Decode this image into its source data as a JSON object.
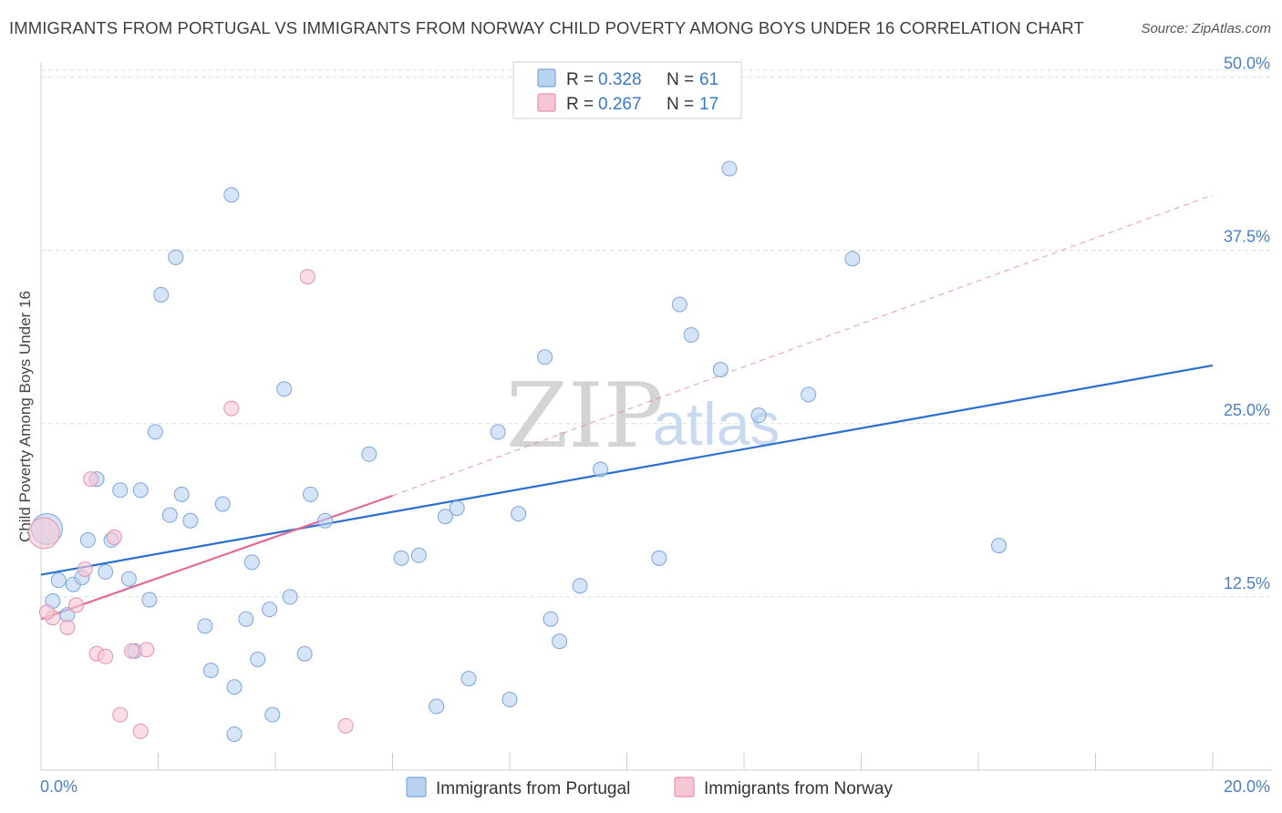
{
  "title": "IMMIGRANTS FROM PORTUGAL VS IMMIGRANTS FROM NORWAY CHILD POVERTY AMONG BOYS UNDER 16 CORRELATION CHART",
  "source": "Source: ZipAtlas.com",
  "watermark": {
    "zip": "ZIP",
    "atlas": "atlas"
  },
  "legend": {
    "rows": [
      {
        "r_label": "R =",
        "r_value": "0.328",
        "n_label": "N =",
        "n_value": "61"
      },
      {
        "r_label": "R =",
        "r_value": "0.267",
        "n_label": "N =",
        "n_value": "17"
      }
    ]
  },
  "bottom_legend": [
    "Immigrants from Portugal",
    "Immigrants from Norway"
  ],
  "colors": {
    "portugal_fill": "#b9d2f0",
    "portugal_stroke": "#7aa6dc",
    "portugal_line": "#2a6fd0",
    "norway_fill": "#f7c6d4",
    "norway_stroke": "#e890ad",
    "norway_line": "#e26a95",
    "axis_label": "#4a7fc4",
    "grid": "#dcdcdc"
  },
  "chart_data": {
    "type": "scatter",
    "title": "IMMIGRANTS FROM PORTUGAL VS IMMIGRANTS FROM NORWAY CHILD POVERTY AMONG BOYS UNDER 16 CORRELATION CHART",
    "xlabel": "",
    "ylabel": "Child Poverty Among Boys Under 16",
    "xlim": [
      0,
      20
    ],
    "ylim": [
      0,
      50.5
    ],
    "x_tick_labels": [
      "0.0%",
      "20.0%"
    ],
    "y_ticks": [
      12.5,
      25.0,
      37.5,
      50.0
    ],
    "y_tick_labels": [
      "12.5%",
      "25.0%",
      "37.5%",
      "50.0%"
    ],
    "grid": true,
    "legend_position": "top-center",
    "series": [
      {
        "name": "Immigrants from Portugal",
        "r": 0.328,
        "n": 61,
        "trend": {
          "x": [
            0,
            20
          ],
          "y": [
            14.1,
            29.2
          ],
          "style": "solid"
        },
        "points": [
          {
            "x": 0.1,
            "y": 17.4,
            "big": true
          },
          {
            "x": 0.2,
            "y": 12.2
          },
          {
            "x": 0.3,
            "y": 13.7
          },
          {
            "x": 0.45,
            "y": 11.2
          },
          {
            "x": 0.55,
            "y": 13.4
          },
          {
            "x": 0.7,
            "y": 13.9
          },
          {
            "x": 0.8,
            "y": 16.6
          },
          {
            "x": 0.95,
            "y": 21.0
          },
          {
            "x": 1.1,
            "y": 14.3
          },
          {
            "x": 1.2,
            "y": 16.6
          },
          {
            "x": 1.35,
            "y": 20.2
          },
          {
            "x": 1.5,
            "y": 13.8
          },
          {
            "x": 1.6,
            "y": 8.6
          },
          {
            "x": 1.7,
            "y": 20.2
          },
          {
            "x": 1.85,
            "y": 12.3
          },
          {
            "x": 1.95,
            "y": 24.4
          },
          {
            "x": 2.05,
            "y": 34.3
          },
          {
            "x": 2.2,
            "y": 18.4
          },
          {
            "x": 2.3,
            "y": 37.0
          },
          {
            "x": 2.4,
            "y": 19.9
          },
          {
            "x": 2.55,
            "y": 18.0
          },
          {
            "x": 2.8,
            "y": 10.4
          },
          {
            "x": 2.9,
            "y": 7.2
          },
          {
            "x": 3.1,
            "y": 19.2
          },
          {
            "x": 3.25,
            "y": 41.5
          },
          {
            "x": 3.3,
            "y": 6.0
          },
          {
            "x": 3.5,
            "y": 10.9
          },
          {
            "x": 3.6,
            "y": 15.0
          },
          {
            "x": 3.7,
            "y": 8.0
          },
          {
            "x": 3.9,
            "y": 11.6
          },
          {
            "x": 3.95,
            "y": 4.0
          },
          {
            "x": 4.15,
            "y": 27.5
          },
          {
            "x": 4.25,
            "y": 12.5
          },
          {
            "x": 4.5,
            "y": 8.4
          },
          {
            "x": 4.6,
            "y": 19.9
          },
          {
            "x": 4.85,
            "y": 18.0
          },
          {
            "x": 5.6,
            "y": 22.8
          },
          {
            "x": 6.15,
            "y": 15.3
          },
          {
            "x": 6.45,
            "y": 15.5
          },
          {
            "x": 6.75,
            "y": 4.6
          },
          {
            "x": 6.9,
            "y": 18.3
          },
          {
            "x": 7.1,
            "y": 18.9
          },
          {
            "x": 7.3,
            "y": 6.6
          },
          {
            "x": 7.8,
            "y": 24.4
          },
          {
            "x": 8.0,
            "y": 5.1
          },
          {
            "x": 8.15,
            "y": 18.5
          },
          {
            "x": 8.6,
            "y": 29.8
          },
          {
            "x": 8.7,
            "y": 10.9
          },
          {
            "x": 8.85,
            "y": 9.3
          },
          {
            "x": 9.2,
            "y": 13.3
          },
          {
            "x": 9.55,
            "y": 21.7
          },
          {
            "x": 10.55,
            "y": 15.3
          },
          {
            "x": 10.9,
            "y": 33.6
          },
          {
            "x": 11.1,
            "y": 31.4
          },
          {
            "x": 11.6,
            "y": 28.9
          },
          {
            "x": 11.75,
            "y": 43.4
          },
          {
            "x": 12.25,
            "y": 25.6
          },
          {
            "x": 13.1,
            "y": 27.1
          },
          {
            "x": 13.85,
            "y": 36.9
          },
          {
            "x": 16.35,
            "y": 16.2
          },
          {
            "x": 3.3,
            "y": 2.6
          }
        ]
      },
      {
        "name": "Immigrants from Norway",
        "r": 0.267,
        "n": 17,
        "trend": {
          "x": [
            0,
            6
          ],
          "y": [
            10.9,
            19.8
          ],
          "style": "solid",
          "extended_to": {
            "x": 20,
            "y": 41.5,
            "style": "dashed"
          }
        },
        "points": [
          {
            "x": 0.05,
            "y": 17.1,
            "big": true
          },
          {
            "x": 0.2,
            "y": 11.0
          },
          {
            "x": 0.45,
            "y": 10.3
          },
          {
            "x": 0.6,
            "y": 11.9
          },
          {
            "x": 0.75,
            "y": 14.5
          },
          {
            "x": 0.85,
            "y": 21.0
          },
          {
            "x": 0.95,
            "y": 8.4
          },
          {
            "x": 1.1,
            "y": 8.2
          },
          {
            "x": 1.25,
            "y": 16.8
          },
          {
            "x": 1.35,
            "y": 4.0
          },
          {
            "x": 1.55,
            "y": 8.6
          },
          {
            "x": 1.7,
            "y": 2.8
          },
          {
            "x": 1.8,
            "y": 8.7
          },
          {
            "x": 3.25,
            "y": 26.1
          },
          {
            "x": 4.55,
            "y": 35.6
          },
          {
            "x": 5.2,
            "y": 3.2
          },
          {
            "x": 0.1,
            "y": 11.4
          }
        ]
      }
    ]
  }
}
